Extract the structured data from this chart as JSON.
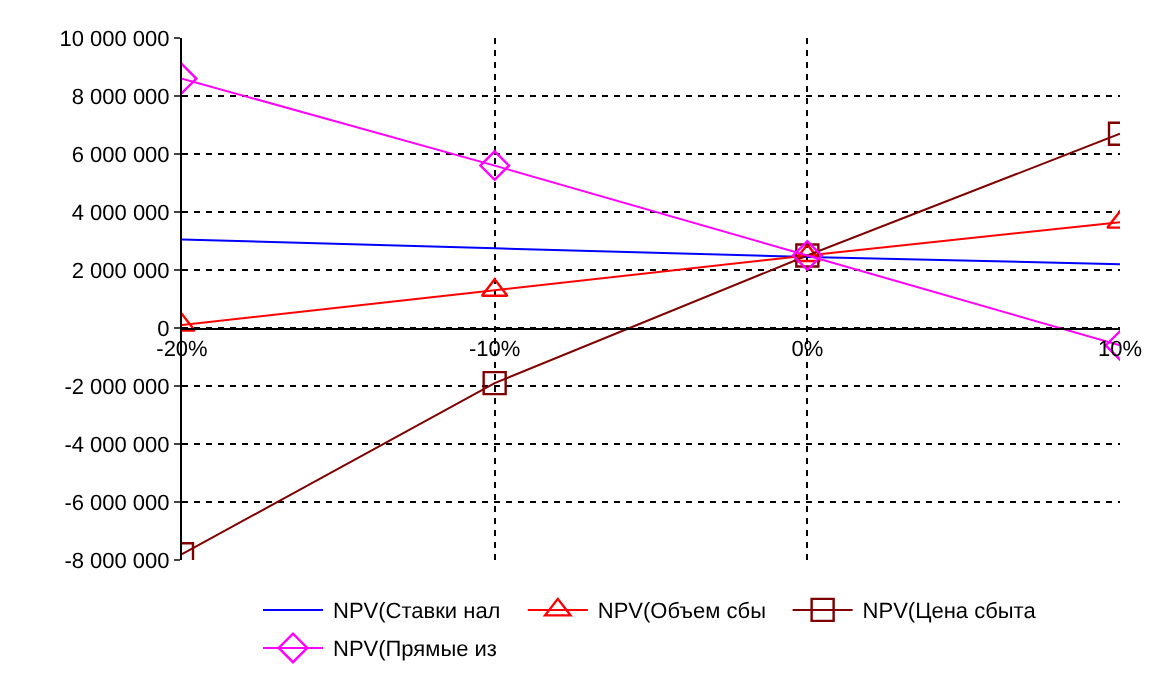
{
  "chart_data": {
    "type": "line",
    "x": [
      -20,
      -10,
      0,
      10
    ],
    "xlim": [
      -20,
      10
    ],
    "xticks": [
      {
        "value": -20,
        "label": "-20%"
      },
      {
        "value": -10,
        "label": "-10%"
      },
      {
        "value": 0,
        "label": "0%"
      },
      {
        "value": 10,
        "label": "10%"
      }
    ],
    "ylim": [
      -8000000,
      10000000
    ],
    "yticks": [
      {
        "value": -8000000,
        "label": "-8 000 000"
      },
      {
        "value": -6000000,
        "label": "-6 000 000"
      },
      {
        "value": -4000000,
        "label": "-4 000 000"
      },
      {
        "value": -2000000,
        "label": "-2 000 000"
      },
      {
        "value": 0,
        "label": "0"
      },
      {
        "value": 2000000,
        "label": "2 000 000"
      },
      {
        "value": 4000000,
        "label": "4 000 000"
      },
      {
        "value": 6000000,
        "label": "6 000 000"
      },
      {
        "value": 8000000,
        "label": "8 000 000"
      },
      {
        "value": 10000000,
        "label": "10 000 000"
      }
    ],
    "grid": true,
    "legend": "bottom",
    "series": [
      {
        "name": "NPV(Ставки нал",
        "color": "#0000ff",
        "marker": "none",
        "values": [
          3050000,
          2750000,
          2450000,
          2200000
        ]
      },
      {
        "name": "NPV(Объем сбы",
        "color": "#ff0000",
        "marker": "triangle",
        "values": [
          100000,
          1300000,
          2500000,
          3650000
        ]
      },
      {
        "name": "NPV(Цена сбыта",
        "color": "#800000",
        "marker": "square",
        "values": [
          -7800000,
          -1900000,
          2500000,
          6700000
        ]
      },
      {
        "name": "NPV(Прямые из",
        "color": "#ff00ff",
        "marker": "diamond",
        "values": [
          8600000,
          5600000,
          2500000,
          -600000
        ]
      }
    ]
  }
}
